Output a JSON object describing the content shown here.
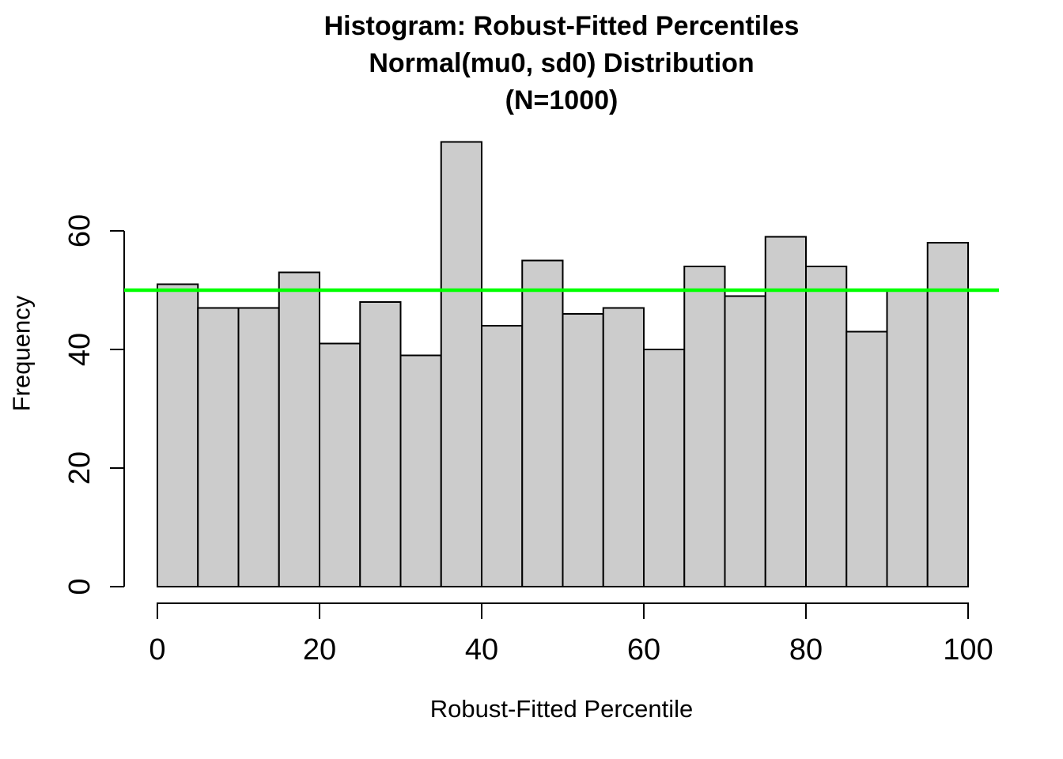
{
  "figure": {
    "background": "#FFFFFF",
    "text_color": "#000000"
  },
  "chart_data": {
    "type": "bar",
    "subtype": "histogram",
    "title_lines": [
      "Histogram: Robust-Fitted Percentiles",
      "Normal(mu0, sd0) Distribution",
      "(N=1000)"
    ],
    "xlabel": "Robust-Fitted Percentile",
    "ylabel": "Frequency",
    "total_n": 1000,
    "bin_start": 0,
    "bin_width": 5,
    "bin_edges": [
      0,
      5,
      10,
      15,
      20,
      25,
      30,
      35,
      40,
      45,
      50,
      55,
      60,
      65,
      70,
      75,
      80,
      85,
      90,
      95,
      100
    ],
    "values": [
      51,
      47,
      47,
      53,
      41,
      48,
      39,
      75,
      44,
      55,
      46,
      47,
      40,
      54,
      49,
      59,
      54,
      43,
      50,
      58
    ],
    "x_ticks": [
      0,
      20,
      40,
      60,
      80,
      100
    ],
    "y_ticks": [
      0,
      20,
      40,
      60
    ],
    "xlim": [
      -4,
      104
    ],
    "ylim": [
      0,
      75
    ],
    "grid": false,
    "legend": false,
    "reference_line": {
      "y": 50,
      "color": "#00FF00"
    },
    "bar_fill": "#CCCCCC",
    "bar_stroke": "#000000",
    "axis_color": "#000000"
  }
}
